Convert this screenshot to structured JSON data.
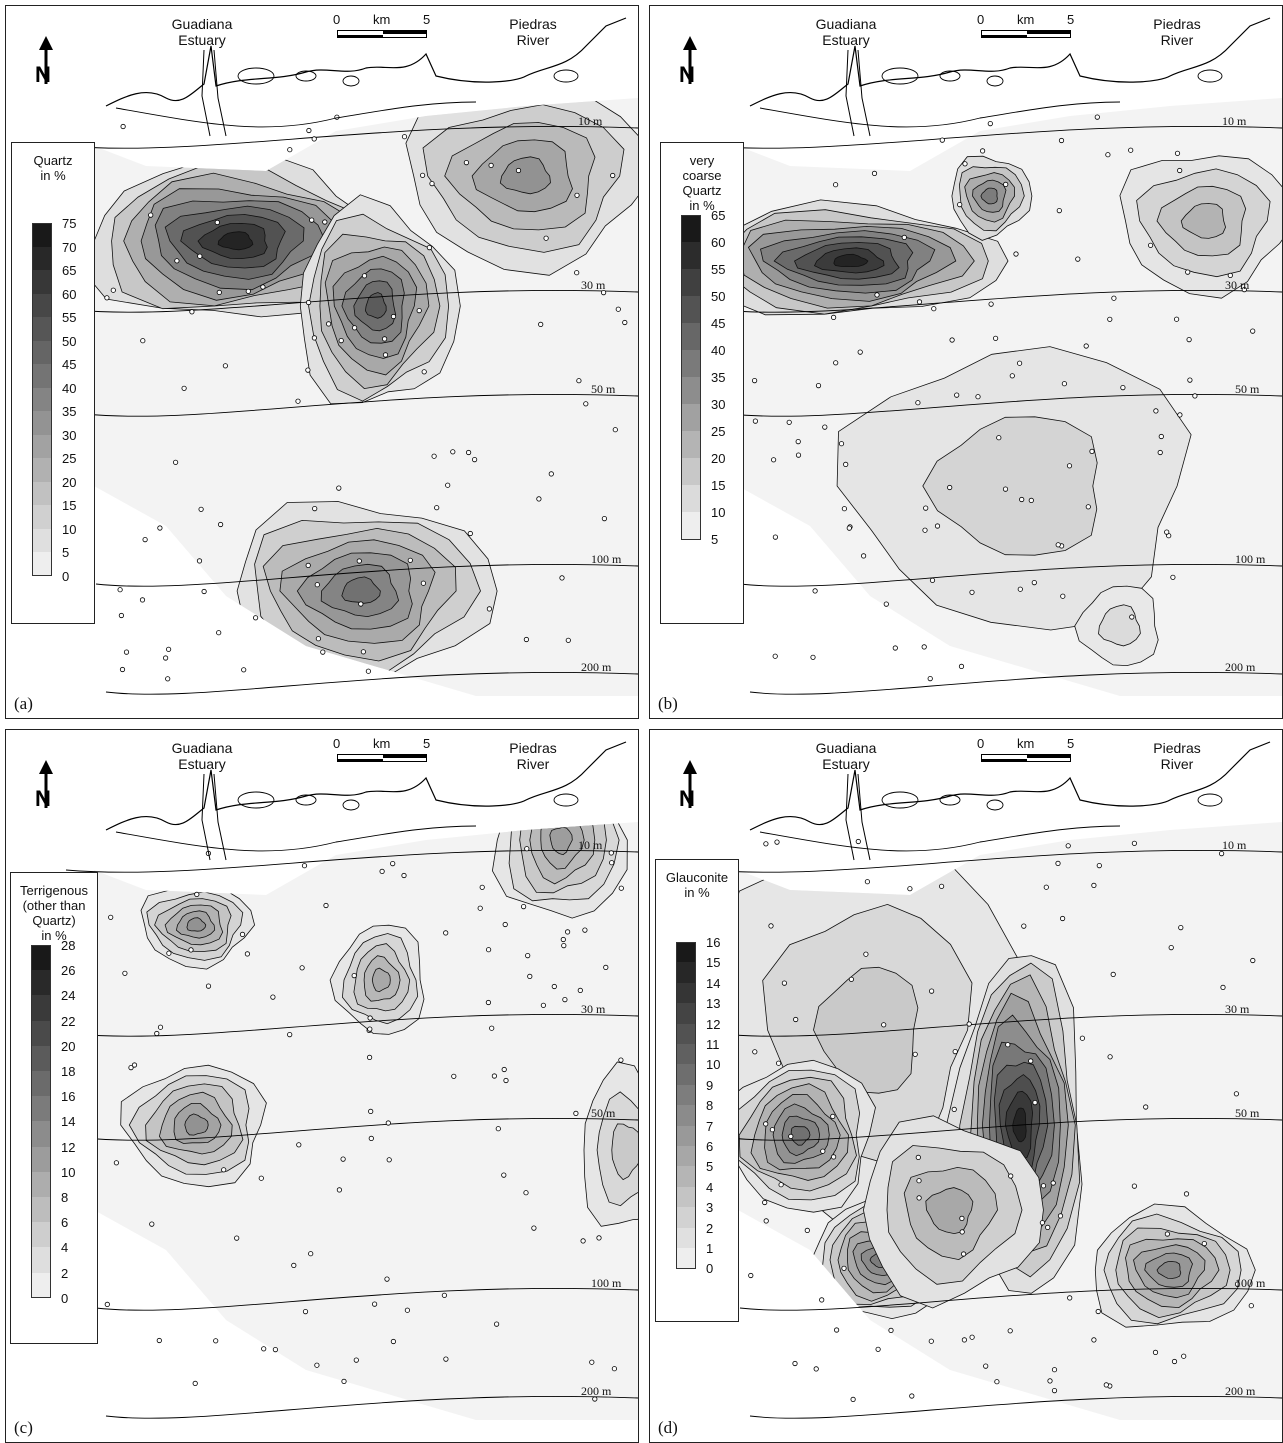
{
  "figure": {
    "panels": [
      {
        "id": "a",
        "label": "(a)",
        "legend_title": [
          "Quartz",
          "in %"
        ],
        "legend_ticks": [
          "75",
          "70",
          "65",
          "60",
          "55",
          "50",
          "45",
          "40",
          "35",
          "30",
          "25",
          "20",
          "15",
          "10",
          "5",
          "0"
        ]
      },
      {
        "id": "b",
        "label": "(b)",
        "legend_title": [
          "very",
          "coarse",
          "Quartz",
          "in %"
        ],
        "legend_ticks": [
          "65",
          "60",
          "55",
          "50",
          "45",
          "40",
          "35",
          "30",
          "25",
          "20",
          "15",
          "10",
          "5"
        ]
      },
      {
        "id": "c",
        "label": "(c)",
        "legend_title": [
          "Terrigenous",
          "(other than",
          "Quartz)",
          "in %"
        ],
        "legend_ticks": [
          "28",
          "26",
          "24",
          "22",
          "20",
          "18",
          "16",
          "14",
          "12",
          "10",
          "8",
          "6",
          "4",
          "2",
          "0"
        ]
      },
      {
        "id": "d",
        "label": "(d)",
        "legend_title": [
          "Glauconite",
          "in %"
        ],
        "legend_ticks": [
          "16",
          "15",
          "14",
          "13",
          "12",
          "11",
          "10",
          "9",
          "8",
          "7",
          "6",
          "5",
          "4",
          "3",
          "2",
          "1",
          "0"
        ]
      }
    ],
    "places": {
      "left": [
        "Guadiana",
        "Estuary"
      ],
      "right": [
        "Piedras",
        "River"
      ]
    },
    "scalebar": {
      "start": "0",
      "unit": "km",
      "end": "5"
    },
    "isobaths": [
      "10 m",
      "30 m",
      "50 m",
      "100 m",
      "200 m"
    ],
    "north_label": "N"
  },
  "colors": {
    "darkest": "#1c1c1c",
    "light": "#f2f2f2",
    "contour": "#000000"
  }
}
